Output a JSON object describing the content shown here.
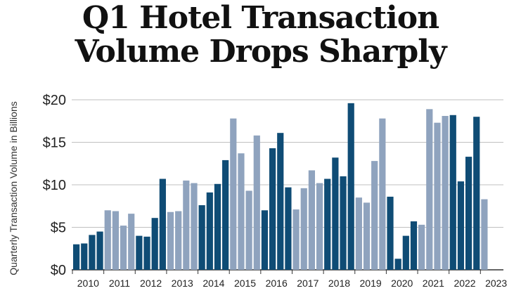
{
  "chart_data": {
    "type": "bar",
    "title_lines": [
      "Q1 Hotel Transaction",
      "Volume Drops Sharply"
    ],
    "ylabel": "Quarterly Transaction Volume in Billions",
    "ylim": [
      0,
      20
    ],
    "yticks": [
      0,
      5,
      10,
      15,
      20
    ],
    "ytick_labels": [
      "$0",
      "$5",
      "$10",
      "$15",
      "$20"
    ],
    "grid": true,
    "x_labels": [
      "2010",
      "2011",
      "2012",
      "2013",
      "2014",
      "2015",
      "2016",
      "2017",
      "2018",
      "2019",
      "2020",
      "2021",
      "2022",
      "2023"
    ],
    "colors": {
      "dark": "#0f4c75",
      "light": "#8fa3be",
      "grid": "#bfbfbf",
      "axis": "#333333"
    },
    "values": [
      3.0,
      3.1,
      4.1,
      4.5,
      7.0,
      6.9,
      5.2,
      6.6,
      4.0,
      3.9,
      6.1,
      10.7,
      6.8,
      6.9,
      10.5,
      10.2,
      7.6,
      9.1,
      10.1,
      12.9,
      17.8,
      13.7,
      9.3,
      15.8,
      7.0,
      14.3,
      16.1,
      9.7,
      7.1,
      9.6,
      11.7,
      10.2,
      10.7,
      13.2,
      11.0,
      19.6,
      8.5,
      7.9,
      12.8,
      17.8,
      8.6,
      1.3,
      4.0,
      5.7,
      5.3,
      18.9,
      17.3,
      18.1,
      18.2,
      10.4,
      13.3,
      18.0,
      8.3
    ]
  }
}
